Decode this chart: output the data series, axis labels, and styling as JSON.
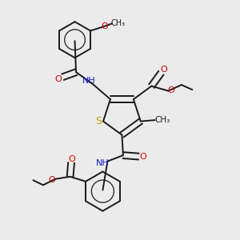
{
  "bg_color": "#ebebeb",
  "bond_color": "#1a1a1a",
  "S_color": "#b8a000",
  "N_color": "#1a1acc",
  "O_color": "#cc0000",
  "font_size": 8.0,
  "lw": 1.4,
  "xlim": [
    0.0,
    1.0
  ],
  "ylim": [
    0.0,
    1.0
  ]
}
